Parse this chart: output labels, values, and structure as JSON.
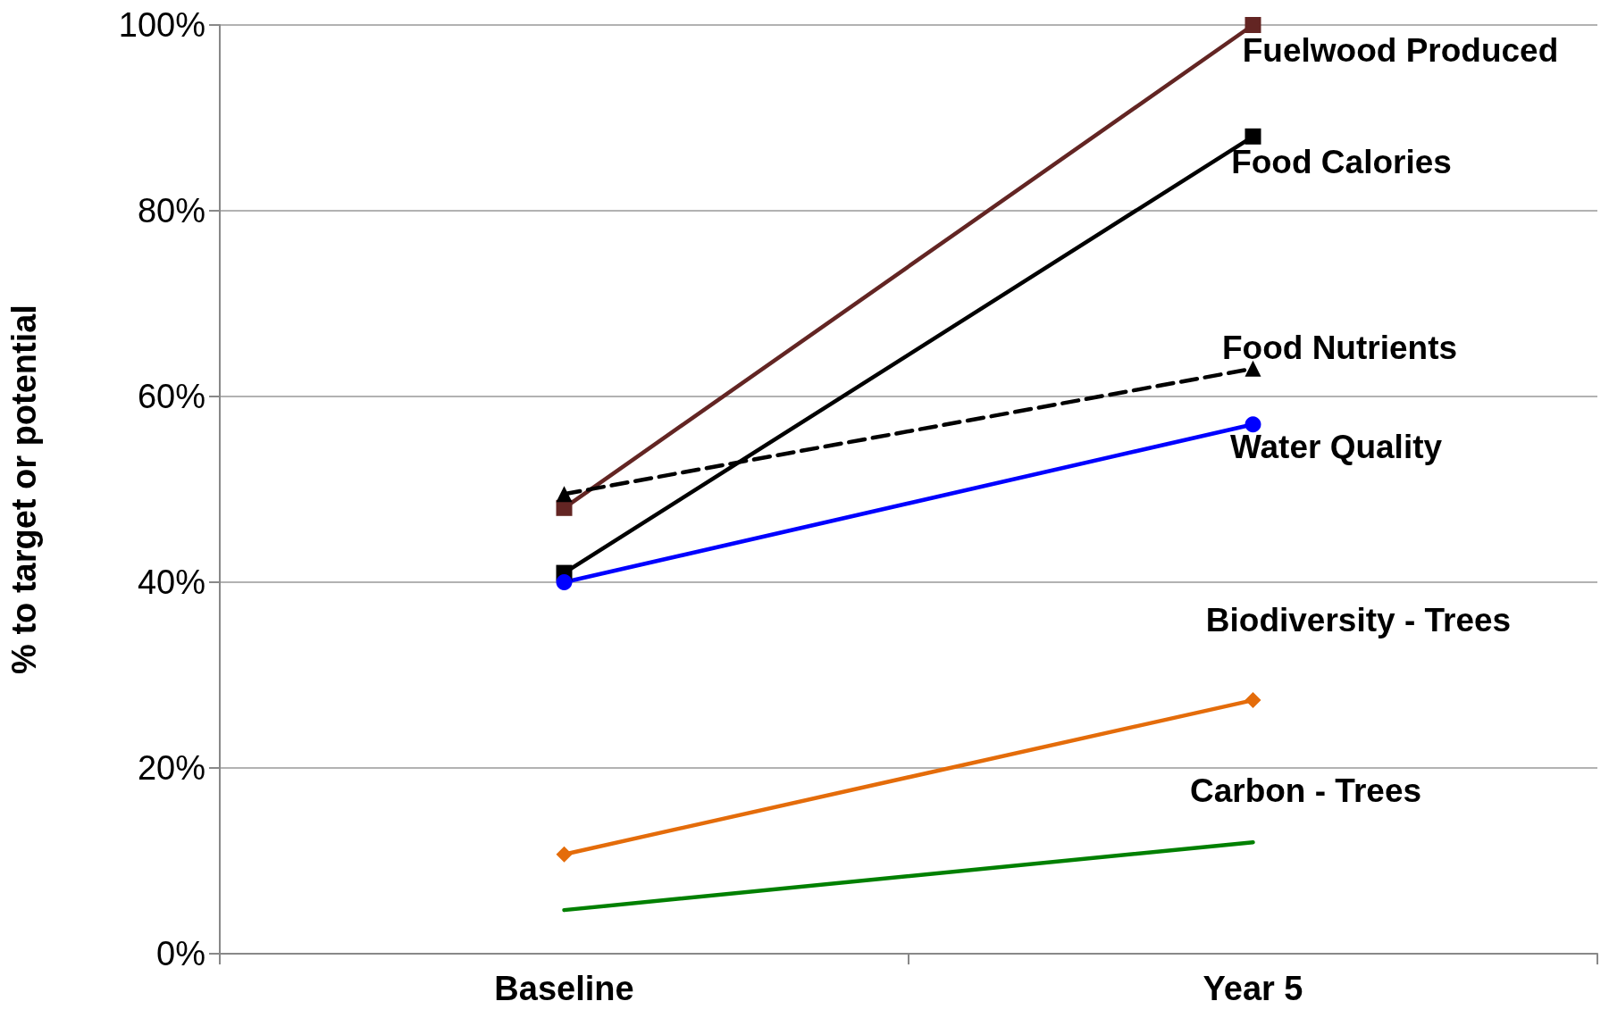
{
  "chart_data": {
    "type": "line",
    "ylabel": "% to target or potential",
    "categories": [
      "Baseline",
      "Year 5"
    ],
    "ylim": [
      0,
      100
    ],
    "yticks": [
      {
        "value": 0,
        "label": "0%"
      },
      {
        "value": 20,
        "label": "20%"
      },
      {
        "value": 40,
        "label": "40%"
      },
      {
        "value": 60,
        "label": "60%"
      },
      {
        "value": 80,
        "label": "80%"
      },
      {
        "value": 100,
        "label": "100%"
      }
    ],
    "grid": "y",
    "legend": false,
    "series": [
      {
        "name": "Fuelwood Produced",
        "color": "#632523",
        "values": [
          48,
          100
        ],
        "marker": "square",
        "line_style": "solid"
      },
      {
        "name": "Food Calories",
        "color": "#000000",
        "values": [
          41,
          88
        ],
        "marker": "square",
        "line_style": "solid"
      },
      {
        "name": "Food Nutrients",
        "color": "#000000",
        "values": [
          49.5,
          63
        ],
        "marker": "triangle",
        "line_style": "dashed"
      },
      {
        "name": "Water Quality",
        "color": "#0000ff",
        "values": [
          40,
          57
        ],
        "marker": "circle",
        "line_style": "solid"
      },
      {
        "name": "Biodiversity - Trees",
        "color": "#e46c0a",
        "values": [
          10.7,
          27.3
        ],
        "marker": "diamond",
        "line_style": "solid"
      },
      {
        "name": "Carbon - Trees",
        "color": "#008000",
        "values": [
          4.7,
          12
        ],
        "marker": "none",
        "line_style": "solid"
      }
    ]
  }
}
